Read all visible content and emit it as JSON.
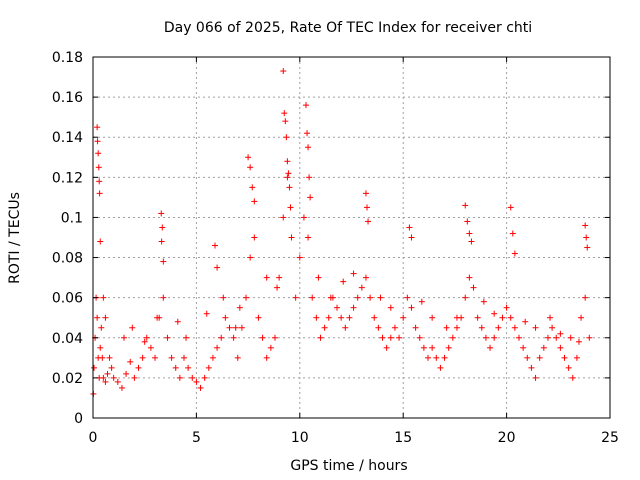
{
  "chart_data": {
    "type": "scatter",
    "title": "Day 066 of 2025, Rate Of TEC Index for receiver chti",
    "xlabel": "GPS time / hours",
    "ylabel": "ROTI / TECUs",
    "xlim": [
      0,
      25
    ],
    "ylim": [
      0,
      0.18
    ],
    "xticks": [
      0,
      5,
      10,
      15,
      20,
      25
    ],
    "yticks": [
      0,
      0.02,
      0.04,
      0.06,
      0.08,
      0.1,
      0.12,
      0.14,
      0.16,
      0.18
    ],
    "xtick_labels": [
      "0",
      "5",
      "10",
      "15",
      "20",
      "25"
    ],
    "ytick_labels": [
      "0",
      "0.02",
      "0.04",
      "0.06",
      "0.08",
      "0.1",
      "0.12",
      "0.14",
      "0.16",
      "0.18"
    ],
    "grid": true,
    "marker": "+",
    "color": "#ff0000",
    "series": [
      {
        "x": [
          0.02,
          0.05,
          0.1,
          0.15,
          0.2,
          0.25,
          0.3,
          0.35,
          0.4,
          0.45,
          0.5,
          0.6,
          0.7,
          0.8,
          0.9,
          1.0,
          1.2,
          1.4,
          1.6,
          1.8,
          2.0,
          2.2,
          2.4,
          2.6,
          2.8,
          3.0,
          3.2,
          3.4,
          3.6,
          3.8,
          4.0,
          4.2,
          4.4,
          4.6,
          4.8,
          5.0,
          5.2,
          5.4,
          5.6,
          5.8,
          6.0,
          6.2,
          6.4,
          6.6,
          6.8,
          7.0,
          7.2,
          7.4,
          7.6,
          7.8,
          8.0,
          8.2,
          8.4,
          8.6,
          8.8,
          9.0,
          9.2,
          9.4,
          9.6,
          9.8,
          10.0,
          10.2,
          10.4,
          10.6,
          10.8,
          11.0,
          11.2,
          11.4,
          11.6,
          11.8,
          12.0,
          12.2,
          12.4,
          12.6,
          12.8,
          13.0,
          13.2,
          13.4,
          13.6,
          13.8,
          14.0,
          14.2,
          14.4,
          14.6,
          14.8,
          15.0,
          15.2,
          15.4,
          15.6,
          15.8,
          16.0,
          16.2,
          16.4,
          16.6,
          16.8,
          17.0,
          17.2,
          17.4,
          17.6,
          17.8,
          18.0,
          18.2,
          18.4,
          18.6,
          18.8,
          19.0,
          19.2,
          19.4,
          19.6,
          19.8,
          20.0,
          20.2,
          20.4,
          20.6,
          20.8,
          21.0,
          21.2,
          21.4,
          21.6,
          21.8,
          22.0,
          22.2,
          22.4,
          22.6,
          22.8,
          23.0,
          23.2,
          23.4,
          23.6,
          23.8,
          24.0,
          0.2,
          0.22,
          0.25,
          0.28,
          0.3,
          0.32,
          0.35,
          3.3,
          3.35,
          3.32,
          3.4,
          5.9,
          6.0,
          7.5,
          7.6,
          7.7,
          7.8,
          9.2,
          9.25,
          9.3,
          9.35,
          9.4,
          9.45,
          9.5,
          9.55,
          10.3,
          10.35,
          10.4,
          10.45,
          10.5,
          13.2,
          13.25,
          13.3,
          15.3,
          15.4,
          18.0,
          18.1,
          18.2,
          18.3,
          20.2,
          20.3,
          20.4,
          23.8,
          23.85,
          23.9,
          0.5,
          0.6,
          1.5,
          1.9,
          2.5,
          3.1,
          4.1,
          4.5,
          5.5,
          6.3,
          6.9,
          7.1,
          8.4,
          8.9,
          10.9,
          11.5,
          12.1,
          12.6,
          13.9,
          14.4,
          15.9,
          16.4,
          17.1,
          17.6,
          18.9,
          19.4,
          20.9,
          21.4,
          22.1,
          22.6,
          23.1,
          23.5
        ],
        "y": [
          0.012,
          0.025,
          0.04,
          0.06,
          0.05,
          0.03,
          0.02,
          0.035,
          0.045,
          0.03,
          0.02,
          0.018,
          0.022,
          0.03,
          0.025,
          0.02,
          0.018,
          0.015,
          0.022,
          0.028,
          0.02,
          0.025,
          0.03,
          0.04,
          0.035,
          0.03,
          0.05,
          0.06,
          0.04,
          0.03,
          0.025,
          0.02,
          0.03,
          0.025,
          0.02,
          0.018,
          0.015,
          0.02,
          0.025,
          0.03,
          0.035,
          0.04,
          0.05,
          0.045,
          0.04,
          0.03,
          0.045,
          0.06,
          0.08,
          0.09,
          0.05,
          0.04,
          0.03,
          0.035,
          0.04,
          0.07,
          0.1,
          0.12,
          0.09,
          0.06,
          0.08,
          0.1,
          0.09,
          0.06,
          0.05,
          0.04,
          0.045,
          0.05,
          0.06,
          0.055,
          0.05,
          0.045,
          0.05,
          0.055,
          0.06,
          0.065,
          0.07,
          0.06,
          0.05,
          0.045,
          0.04,
          0.035,
          0.04,
          0.045,
          0.04,
          0.05,
          0.06,
          0.055,
          0.045,
          0.04,
          0.035,
          0.03,
          0.035,
          0.03,
          0.025,
          0.03,
          0.035,
          0.04,
          0.045,
          0.05,
          0.06,
          0.07,
          0.065,
          0.05,
          0.045,
          0.04,
          0.035,
          0.04,
          0.045,
          0.05,
          0.055,
          0.05,
          0.045,
          0.04,
          0.035,
          0.03,
          0.025,
          0.02,
          0.03,
          0.035,
          0.04,
          0.045,
          0.04,
          0.035,
          0.03,
          0.025,
          0.02,
          0.03,
          0.05,
          0.06,
          0.04,
          0.145,
          0.138,
          0.132,
          0.125,
          0.118,
          0.112,
          0.088,
          0.102,
          0.095,
          0.088,
          0.078,
          0.086,
          0.075,
          0.13,
          0.125,
          0.115,
          0.108,
          0.173,
          0.152,
          0.148,
          0.14,
          0.128,
          0.122,
          0.115,
          0.105,
          0.156,
          0.142,
          0.135,
          0.12,
          0.11,
          0.112,
          0.105,
          0.098,
          0.095,
          0.09,
          0.106,
          0.098,
          0.092,
          0.088,
          0.105,
          0.092,
          0.082,
          0.096,
          0.09,
          0.085,
          0.06,
          0.05,
          0.04,
          0.045,
          0.038,
          0.05,
          0.048,
          0.04,
          0.052,
          0.06,
          0.045,
          0.055,
          0.07,
          0.065,
          0.07,
          0.06,
          0.068,
          0.072,
          0.06,
          0.055,
          0.058,
          0.05,
          0.045,
          0.05,
          0.058,
          0.052,
          0.048,
          0.045,
          0.05,
          0.042,
          0.04,
          0.038
        ]
      }
    ]
  }
}
